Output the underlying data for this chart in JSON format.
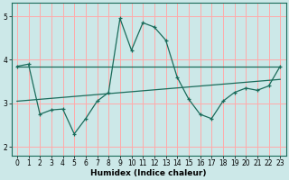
{
  "xlabel": "Humidex (Indice chaleur)",
  "bg_color": "#cce8e8",
  "line_color": "#1a6b5a",
  "grid_color": "#ffaaaa",
  "ylim": [
    1.8,
    5.3
  ],
  "xlim": [
    -0.5,
    23.5
  ],
  "yticks": [
    2,
    3,
    4,
    5
  ],
  "xticks": [
    0,
    1,
    2,
    3,
    4,
    5,
    6,
    7,
    8,
    9,
    10,
    11,
    12,
    13,
    14,
    15,
    16,
    17,
    18,
    19,
    20,
    21,
    22,
    23
  ],
  "line1_x": [
    0,
    1,
    2,
    3,
    4,
    5,
    6,
    7,
    8,
    9,
    10,
    11,
    12,
    13,
    14,
    15,
    16,
    17,
    18,
    19,
    20,
    21,
    22,
    23
  ],
  "line1_y": [
    3.85,
    3.9,
    2.75,
    2.85,
    2.87,
    2.3,
    2.65,
    3.05,
    3.25,
    4.95,
    4.22,
    4.85,
    4.75,
    4.45,
    3.6,
    3.1,
    2.75,
    2.65,
    3.05,
    3.25,
    3.35,
    3.3,
    3.4,
    3.85
  ],
  "line2_x": [
    0,
    23
  ],
  "line2_y": [
    3.85,
    3.85
  ],
  "line3_x": [
    0,
    23
  ],
  "line3_y": [
    3.05,
    3.55
  ],
  "tick_fontsize": 5.5,
  "xlabel_fontsize": 6.5
}
